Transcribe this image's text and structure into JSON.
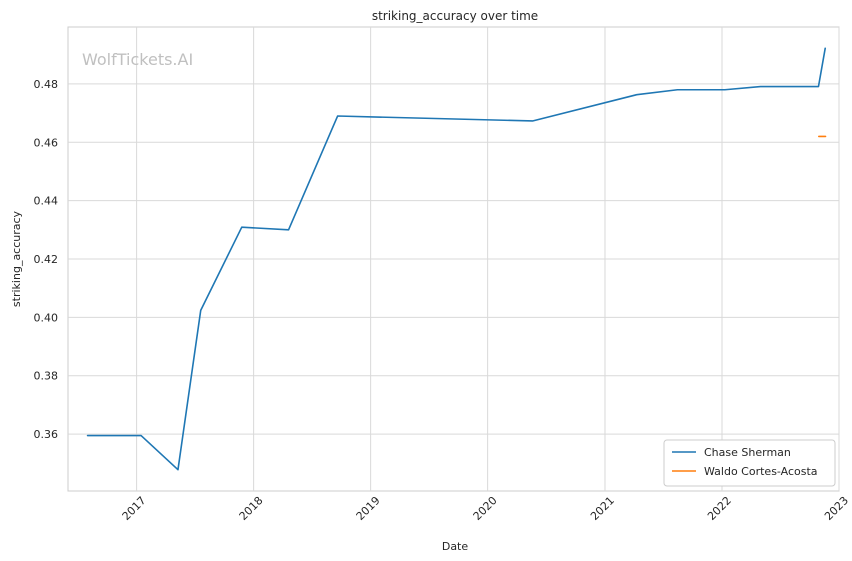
{
  "chart_data": {
    "type": "line",
    "title": "striking_accuracy over time",
    "xlabel": "Date",
    "ylabel": "striking_accuracy",
    "watermark": "WolfTickets.AI",
    "grid": true,
    "legend_position": "bottom-right",
    "x_ticks": [
      "2017",
      "2018",
      "2019",
      "2020",
      "2021",
      "2022",
      "2023"
    ],
    "y_ticks": [
      "0.36",
      "0.38",
      "0.40",
      "0.42",
      "0.44",
      "0.46",
      "0.48"
    ],
    "ylim": [
      0.3405,
      0.4995
    ],
    "xlim": [
      "2016-06-01",
      "2023-01-01"
    ],
    "series": [
      {
        "name": "Chase Sherman",
        "color": "#1f77b4",
        "points": [
          {
            "x": "2016-08-01",
            "y": 0.3595
          },
          {
            "x": "2017-01-15",
            "y": 0.3595
          },
          {
            "x": "2017-05-10",
            "y": 0.3478
          },
          {
            "x": "2017-07-20",
            "y": 0.4024
          },
          {
            "x": "2017-11-25",
            "y": 0.4309
          },
          {
            "x": "2018-04-20",
            "y": 0.43
          },
          {
            "x": "2018-09-20",
            "y": 0.469
          },
          {
            "x": "2020-05-20",
            "y": 0.4673
          },
          {
            "x": "2021-04-10",
            "y": 0.4763
          },
          {
            "x": "2021-08-15",
            "y": 0.478
          },
          {
            "x": "2022-01-10",
            "y": 0.478
          },
          {
            "x": "2022-05-01",
            "y": 0.4791
          },
          {
            "x": "2022-10-29",
            "y": 0.4791
          },
          {
            "x": "2022-11-19",
            "y": 0.4922
          }
        ]
      },
      {
        "name": "Waldo Cortes-Acosta",
        "color": "#ff7f0e",
        "points": [
          {
            "x": "2022-10-30",
            "y": 0.462
          },
          {
            "x": "2022-11-20",
            "y": 0.462
          }
        ]
      }
    ]
  }
}
